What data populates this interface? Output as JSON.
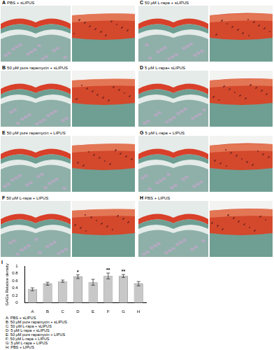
{
  "panels": [
    {
      "label": "A",
      "title": "PBS + sLIPUS"
    },
    {
      "label": "B",
      "title": "50 μM pure rapamycin + sLIPUS"
    },
    {
      "label": "C",
      "title": "50 μM L-rapa + sLIPUS"
    },
    {
      "label": "D",
      "title": "5 μM L-rapa+ sLIPUS"
    },
    {
      "label": "E",
      "title": "50 μM pure rapamycin + LIPUS"
    },
    {
      "label": "F",
      "title": "50 μM L-rapa + LIPUS"
    },
    {
      "label": "G",
      "title": "5 μM L-rapa + LIPUS"
    },
    {
      "label": "H",
      "title": "PBS + LIPUS"
    }
  ],
  "chart_panel_label": "I",
  "chart_data": {
    "type": "bar",
    "y_label": "GAGs Relative density",
    "categories": [
      "A",
      "B",
      "C",
      "D",
      "E",
      "F",
      "G",
      "H"
    ],
    "values": [
      0.37,
      0.52,
      0.59,
      0.71,
      0.56,
      0.73,
      0.73,
      0.52
    ],
    "errors": [
      0.04,
      0.04,
      0.03,
      0.05,
      0.08,
      0.08,
      0.04,
      0.06
    ],
    "significance": [
      {
        "category": "D",
        "label": "*"
      },
      {
        "category": "F",
        "label": "**"
      },
      {
        "category": "G",
        "label": "**"
      }
    ],
    "color": "#c8c8c8",
    "ylim": [
      0,
      1
    ],
    "yticks": [
      0,
      0.2,
      0.4,
      0.6,
      0.8,
      1
    ],
    "grid": false
  },
  "key": [
    "A: PBS + sLIPUS",
    "B: 50 μM pure rapamycin + sLIPUS",
    "C: 50 μM L-rapa + sLIPUS",
    "D: 5 μM L-rapa + sLIPUS",
    "E: 50 μM pure rapamycin + LIPUS",
    "F: 50 μM L-rapa + LIPUS",
    "G: 5 μM L-rapa + LIPUS",
    "H: PBS + LIPUS"
  ]
}
